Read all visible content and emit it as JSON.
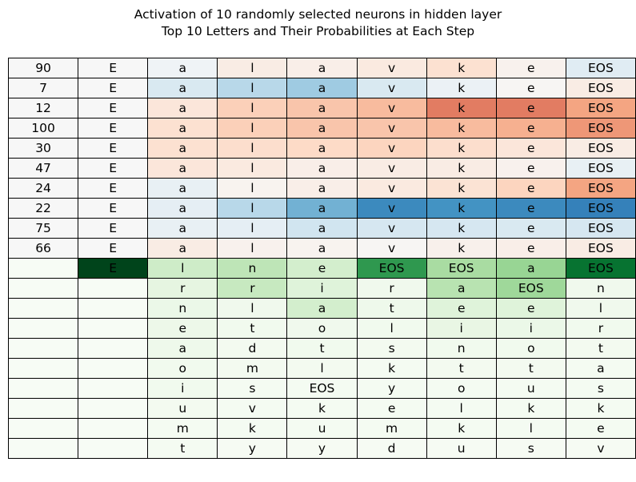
{
  "chart_data": {
    "type": "table",
    "title": "Activation of 10 randomly selected neurons in hidden layer",
    "subtitle": "Top 10 Letters and Their Probabilities at Each Step",
    "neuron_rows": [
      {
        "neuron": "90",
        "start": "E",
        "chars": [
          "a",
          "l",
          "a",
          "v",
          "k",
          "e",
          "EOS"
        ],
        "activations": [
          -0.05,
          0.1,
          0.08,
          0.12,
          0.2,
          0.05,
          -0.15
        ]
      },
      {
        "neuron": "7",
        "start": "E",
        "chars": [
          "a",
          "l",
          "a",
          "v",
          "k",
          "e",
          "EOS"
        ],
        "activations": [
          -0.2,
          -0.35,
          -0.45,
          -0.2,
          -0.08,
          0.02,
          0.1
        ]
      },
      {
        "neuron": "12",
        "start": "E",
        "chars": [
          "a",
          "l",
          "a",
          "v",
          "k",
          "e",
          "EOS"
        ],
        "activations": [
          0.15,
          0.3,
          0.35,
          0.4,
          0.65,
          0.65,
          0.5
        ]
      },
      {
        "neuron": "100",
        "start": "E",
        "chars": [
          "a",
          "l",
          "a",
          "v",
          "k",
          "e",
          "EOS"
        ],
        "activations": [
          0.2,
          0.3,
          0.35,
          0.35,
          0.4,
          0.45,
          0.55
        ]
      },
      {
        "neuron": "30",
        "start": "E",
        "chars": [
          "a",
          "l",
          "a",
          "v",
          "k",
          "e",
          "EOS"
        ],
        "activations": [
          0.2,
          0.22,
          0.25,
          0.28,
          0.22,
          0.15,
          0.1
        ]
      },
      {
        "neuron": "47",
        "start": "E",
        "chars": [
          "a",
          "l",
          "a",
          "v",
          "k",
          "e",
          "EOS"
        ],
        "activations": [
          0.15,
          0.12,
          0.08,
          0.1,
          0.1,
          0.05,
          -0.1
        ]
      },
      {
        "neuron": "24",
        "start": "E",
        "chars": [
          "a",
          "l",
          "a",
          "v",
          "k",
          "e",
          "EOS"
        ],
        "activations": [
          -0.1,
          0.04,
          0.08,
          0.12,
          0.18,
          0.28,
          0.5
        ]
      },
      {
        "neuron": "22",
        "start": "E",
        "chars": [
          "a",
          "l",
          "a",
          "v",
          "k",
          "e",
          "EOS"
        ],
        "activations": [
          -0.12,
          -0.35,
          -0.6,
          -0.8,
          -0.75,
          -0.8,
          -0.85
        ]
      },
      {
        "neuron": "75",
        "start": "E",
        "chars": [
          "a",
          "l",
          "a",
          "v",
          "k",
          "e",
          "EOS"
        ],
        "activations": [
          -0.1,
          -0.12,
          -0.25,
          -0.22,
          -0.22,
          -0.2,
          -0.22
        ]
      },
      {
        "neuron": "66",
        "start": "E",
        "chars": [
          "a",
          "l",
          "a",
          "v",
          "k",
          "e",
          "EOS"
        ],
        "activations": [
          0.1,
          0.05,
          0.04,
          0.02,
          0.06,
          0.08,
          0.1
        ]
      }
    ],
    "prob_rows": [
      {
        "letters": [
          "E",
          "l",
          "n",
          "e",
          "EOS",
          "EOS",
          "a",
          "EOS"
        ],
        "probs": [
          1.0,
          0.22,
          0.28,
          0.2,
          0.7,
          0.35,
          0.4,
          0.85
        ]
      },
      {
        "letters": [
          "",
          "r",
          "r",
          "i",
          "r",
          "a",
          "EOS",
          "n"
        ],
        "probs": [
          0.0,
          0.12,
          0.25,
          0.15,
          0.05,
          0.3,
          0.38,
          0.05
        ]
      },
      {
        "letters": [
          "",
          "n",
          "l",
          "a",
          "t",
          "e",
          "e",
          "l"
        ],
        "probs": [
          0.0,
          0.08,
          0.05,
          0.2,
          0.06,
          0.15,
          0.15,
          0.05
        ]
      },
      {
        "letters": [
          "",
          "e",
          "t",
          "o",
          "l",
          "i",
          "i",
          "r"
        ],
        "probs": [
          0.0,
          0.07,
          0.04,
          0.05,
          0.04,
          0.1,
          0.08,
          0.04
        ]
      },
      {
        "letters": [
          "",
          "a",
          "d",
          "t",
          "s",
          "n",
          "o",
          "t"
        ],
        "probs": [
          0.0,
          0.06,
          0.03,
          0.04,
          0.03,
          0.04,
          0.04,
          0.03
        ]
      },
      {
        "letters": [
          "",
          "o",
          "m",
          "l",
          "k",
          "t",
          "t",
          "a"
        ],
        "probs": [
          0.0,
          0.04,
          0.03,
          0.03,
          0.02,
          0.03,
          0.03,
          0.02
        ]
      },
      {
        "letters": [
          "",
          "i",
          "s",
          "EOS",
          "y",
          "o",
          "u",
          "s"
        ],
        "probs": [
          0.0,
          0.04,
          0.02,
          0.02,
          0.02,
          0.02,
          0.02,
          0.02
        ]
      },
      {
        "letters": [
          "",
          "u",
          "v",
          "k",
          "e",
          "l",
          "k",
          "k"
        ],
        "probs": [
          0.0,
          0.03,
          0.02,
          0.02,
          0.02,
          0.02,
          0.02,
          0.02
        ]
      },
      {
        "letters": [
          "",
          "m",
          "k",
          "u",
          "m",
          "k",
          "l",
          "e"
        ],
        "probs": [
          0.0,
          0.02,
          0.02,
          0.02,
          0.02,
          0.02,
          0.02,
          0.02
        ]
      },
      {
        "letters": [
          "",
          "t",
          "y",
          "y",
          "d",
          "u",
          "s",
          "v"
        ],
        "probs": [
          0.0,
          0.02,
          0.01,
          0.01,
          0.01,
          0.01,
          0.01,
          0.01
        ]
      }
    ],
    "colormaps": {
      "activation": "RdBu_r",
      "probability": "Greens",
      "neutral_cell": "#f7f7f7"
    }
  }
}
